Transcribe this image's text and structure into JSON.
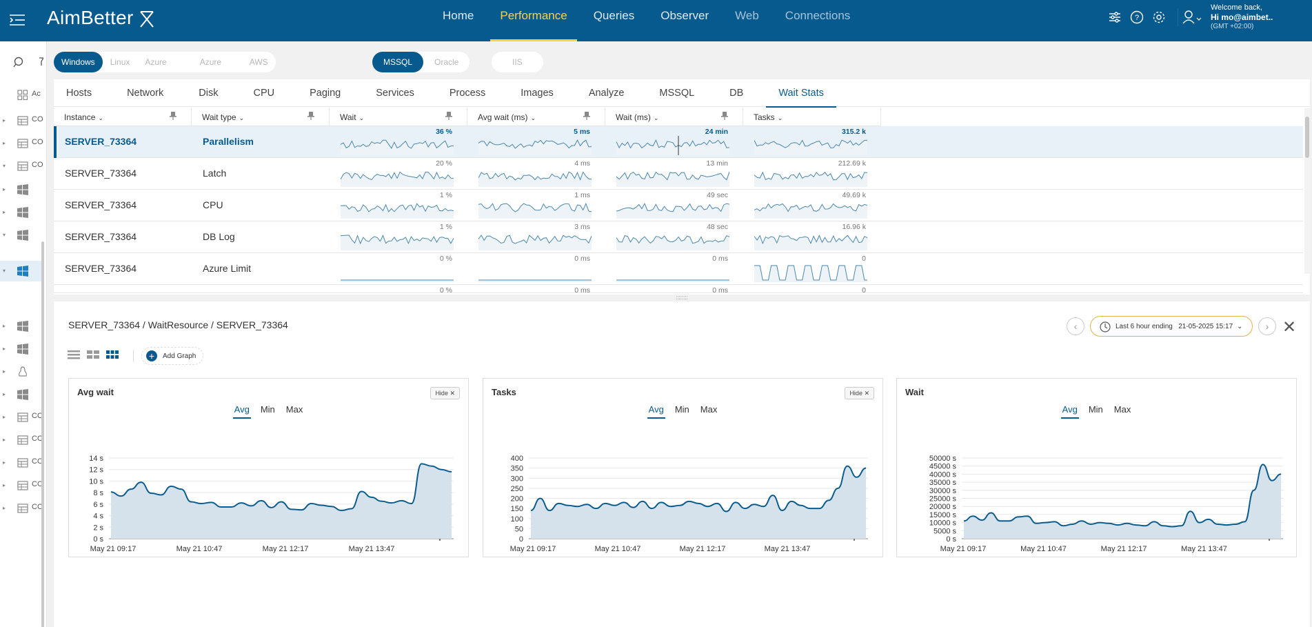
{
  "app": {
    "logo": "AimBetter",
    "welcome": "Welcome back,",
    "user": "Hi mo@aimbet..",
    "timezone": "(GMT +02:00)"
  },
  "nav": [
    {
      "label": "Home",
      "state": "normal"
    },
    {
      "label": "Performance",
      "state": "active"
    },
    {
      "label": "Queries",
      "state": "normal"
    },
    {
      "label": "Observer",
      "state": "normal"
    },
    {
      "label": "Web",
      "state": "dim"
    },
    {
      "label": "Connections",
      "state": "dim"
    }
  ],
  "sidebar": {
    "items": [
      {
        "icon": "grid",
        "text": "Ac",
        "caret": ""
      },
      {
        "icon": "table",
        "text": "CO",
        "caret": "▸"
      },
      {
        "icon": "table",
        "text": "CO",
        "caret": "▸"
      },
      {
        "icon": "table",
        "text": "CO",
        "caret": "▾"
      },
      {
        "icon": "windows",
        "text": "",
        "caret": "▸"
      },
      {
        "icon": "windows",
        "text": "",
        "caret": "▸"
      },
      {
        "icon": "windows",
        "text": "",
        "caret": "▾"
      },
      {
        "icon": "windows-blue",
        "text": "",
        "caret": "▾"
      },
      {
        "icon": "windows",
        "text": "",
        "caret": "▸"
      },
      {
        "icon": "windows",
        "text": "",
        "caret": "▸"
      },
      {
        "icon": "linux",
        "text": "",
        "caret": "▸"
      },
      {
        "icon": "windows",
        "text": "",
        "caret": "▸"
      },
      {
        "icon": "table",
        "text": "CO",
        "caret": "▸"
      },
      {
        "icon": "table",
        "text": "CO",
        "caret": "▸"
      },
      {
        "icon": "table",
        "text": "CO",
        "caret": "▸"
      },
      {
        "icon": "table",
        "text": "CO",
        "caret": "▸"
      },
      {
        "icon": "table",
        "text": "CO",
        "caret": "▸"
      }
    ]
  },
  "os_filters": [
    {
      "label": "Windows",
      "on": true
    },
    {
      "label": "Linux",
      "on": false
    },
    {
      "label": "Azure Databases",
      "on": false
    },
    {
      "label": "Azure Managed",
      "on": false
    },
    {
      "label": "AWS",
      "on": false
    }
  ],
  "db_filters": [
    {
      "label": "MSSQL",
      "on": true
    },
    {
      "label": "Oracle",
      "on": false
    }
  ],
  "iis_filter": {
    "label": "IIS",
    "on": false
  },
  "tabs": [
    "Hosts",
    "Network",
    "Disk",
    "CPU",
    "Paging",
    "Services",
    "Process",
    "Images",
    "Analyze",
    "MSSQL",
    "DB",
    "Wait Stats"
  ],
  "active_tab": "Wait Stats",
  "columns": [
    "Instance",
    "Wait type",
    "Wait",
    "Avg wait (ms)",
    "Wait (ms)",
    "Tasks"
  ],
  "rows": [
    {
      "instance": "SERVER_73364",
      "wait_type": "Parallelism",
      "wait": "36 %",
      "avg_wait": "5 ms",
      "wait_ms": "24 min",
      "tasks": "315.2 k",
      "selected": true
    },
    {
      "instance": "SERVER_73364",
      "wait_type": "Latch",
      "wait": "20 %",
      "avg_wait": "4 ms",
      "wait_ms": "13 min",
      "tasks": "212.69 k",
      "selected": false
    },
    {
      "instance": "SERVER_73364",
      "wait_type": "CPU",
      "wait": "1 %",
      "avg_wait": "1 ms",
      "wait_ms": "49 sec",
      "tasks": "49.69 k",
      "selected": false
    },
    {
      "instance": "SERVER_73364",
      "wait_type": "DB Log",
      "wait": "1 %",
      "avg_wait": "3 ms",
      "wait_ms": "48 sec",
      "tasks": "16.96 k",
      "selected": false
    },
    {
      "instance": "SERVER_73364",
      "wait_type": "Azure Limit",
      "wait": "0 %",
      "avg_wait": "0 ms",
      "wait_ms": "0 ms",
      "tasks": "0",
      "selected": false
    },
    {
      "instance": "",
      "wait_type": "",
      "wait": "0 %",
      "avg_wait": "0 ms",
      "wait_ms": "0 ms",
      "tasks": "0",
      "selected": false
    }
  ],
  "detail": {
    "breadcrumb": "SERVER_73364 / WaitResource / SERVER_73364",
    "time_label": "Last 6 hour ending",
    "time_value": "21-05-2025 15:17",
    "add_graph": "Add Graph",
    "hide_label": "Hide",
    "graph_tabs": [
      "Avg",
      "Min",
      "Max"
    ]
  },
  "chart_data": [
    {
      "type": "area",
      "title": "Avg wait",
      "hide_button": true,
      "active_tab": "Avg",
      "y_ticks": [
        "14 s",
        "12 s",
        "10 s",
        "8 s",
        "6 s",
        "4 s",
        "2 s",
        "0 s"
      ],
      "ylim": [
        0,
        14
      ],
      "x_ticks": [
        "May 21 09:17",
        "May 21 10:47",
        "May 21 12:17",
        "May 21 13:47"
      ],
      "x_range": [
        "May 21 09:17",
        "May 21 15:17"
      ],
      "series": [
        {
          "values": [
            8.1,
            7.4,
            8.6,
            9.8,
            7.9,
            7.6,
            9.1,
            8.6,
            6.4,
            6.1,
            6.3,
            5.5,
            5.5,
            6.2,
            5.7,
            6.6,
            5.4,
            6.4,
            5.1,
            5.0,
            6.1,
            5.8,
            5.6,
            4.9,
            5.2,
            8.2,
            7.2,
            6.5,
            6.2,
            6.6,
            6.1,
            13.0,
            12.6,
            12.0,
            11.6
          ]
        }
      ]
    },
    {
      "type": "area",
      "title": "Tasks",
      "hide_button": true,
      "active_tab": "Avg",
      "y_ticks": [
        "400",
        "350",
        "300",
        "250",
        "200",
        "150",
        "100",
        "50",
        "0"
      ],
      "ylim": [
        0,
        400
      ],
      "x_ticks": [
        "May 21 09:17",
        "May 21 10:47",
        "May 21 12:17",
        "May 21 13:47"
      ],
      "x_range": [
        "May 21 09:17",
        "May 21 15:17"
      ],
      "series": [
        {
          "values": [
            140,
            200,
            140,
            175,
            165,
            160,
            170,
            150,
            175,
            165,
            180,
            155,
            185,
            150,
            180,
            160,
            165,
            185,
            175,
            160,
            175,
            135,
            180,
            150,
            170,
            160,
            215,
            140,
            185,
            165,
            150,
            150,
            190,
            250,
            360,
            305,
            350
          ]
        }
      ]
    },
    {
      "type": "area",
      "title": "Wait",
      "hide_button": false,
      "active_tab": "Avg",
      "y_ticks": [
        "50000 s",
        "45000 s",
        "40000 s",
        "35000 s",
        "30000 s",
        "25000 s",
        "20000 s",
        "15000 s",
        "10000 s",
        "5000 s",
        "0 s"
      ],
      "ylim": [
        0,
        50000
      ],
      "x_ticks": [
        "May 21 09:17",
        "May 21 10:47",
        "May 21 12:17",
        "May 21 13:47"
      ],
      "x_range": [
        "May 21 09:17",
        "May 21 15:17"
      ],
      "series": [
        {
          "values": [
            11000,
            14000,
            11500,
            16000,
            11000,
            11000,
            13500,
            14000,
            9500,
            10000,
            10500,
            8000,
            9000,
            11000,
            9000,
            10000,
            9500,
            8500,
            9500,
            8500,
            8000,
            10500,
            8000,
            7500,
            8000,
            17000,
            10000,
            12000,
            9000,
            8500,
            9000,
            10500,
            30000,
            46000,
            36000,
            40000
          ]
        }
      ]
    }
  ]
}
